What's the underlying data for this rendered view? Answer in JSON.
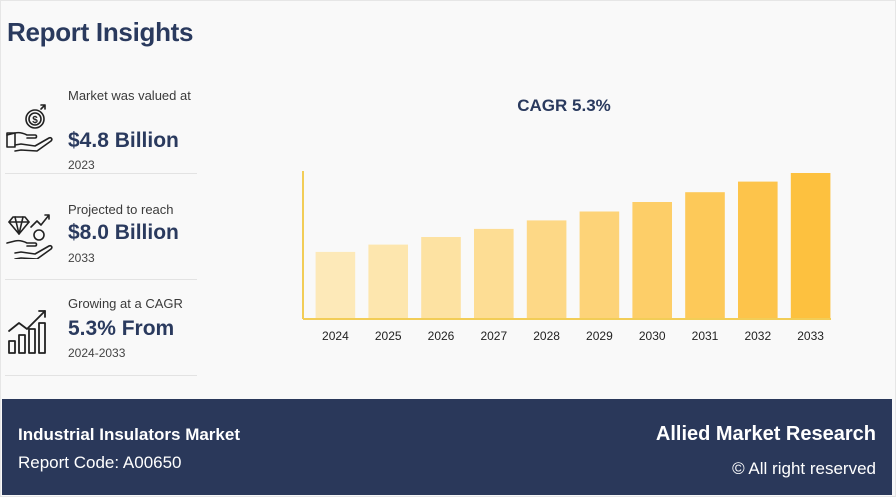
{
  "page": {
    "title": "Report Insights"
  },
  "stats": [
    {
      "icon": "money-hand-icon",
      "label": "Market was valued at",
      "value": "$4.8 Billion",
      "year": "2023"
    },
    {
      "icon": "diamond-growth-icon",
      "label": "Projected to reach",
      "value": "$8.0 Billion",
      "year": "2033"
    },
    {
      "icon": "bar-growth-icon",
      "label": "Growing at a CAGR",
      "value": "5.3% From",
      "year": "2024-2033"
    }
  ],
  "chart_data": {
    "type": "bar",
    "title": "CAGR 5.3%",
    "xlabel": "",
    "ylabel": "",
    "categories": [
      "2024",
      "2025",
      "2026",
      "2027",
      "2028",
      "2029",
      "2030",
      "2031",
      "2032",
      "2033"
    ],
    "values": [
      5.05,
      5.32,
      5.6,
      5.9,
      6.21,
      6.54,
      6.89,
      7.25,
      7.64,
      8.0
    ],
    "ylim": [
      0,
      8.4
    ],
    "grid": false,
    "colors": [
      "#fde9b8",
      "#fde6ae",
      "#fde2a2",
      "#fddd94",
      "#fdd886",
      "#fdd378",
      "#fdce68",
      "#fdc959",
      "#fdc44b",
      "#fdc13f"
    ],
    "axis_color": "#f2cd57"
  },
  "footer": {
    "title": "Industrial Insulators Market",
    "code": "Report Code: A00650",
    "brand": "Allied Market Research",
    "rights": "© All right reserved"
  }
}
